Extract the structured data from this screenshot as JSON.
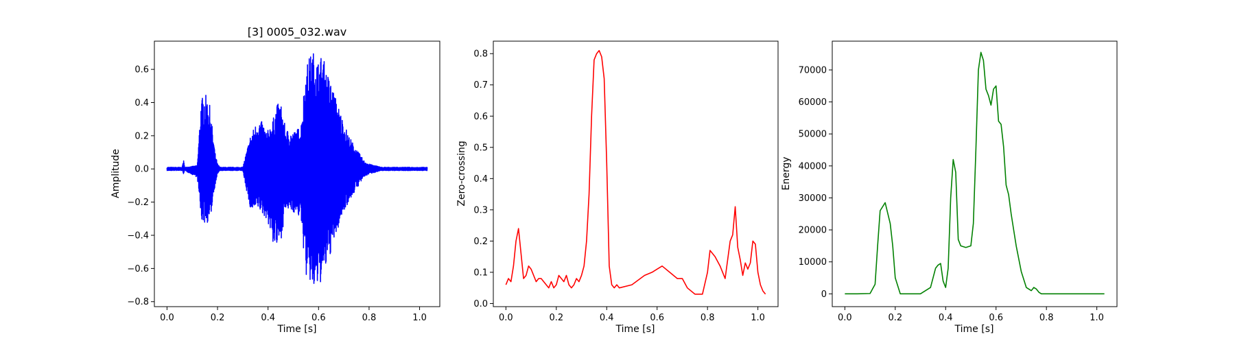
{
  "chart_data": [
    {
      "type": "line",
      "title": "[3] 0005_032.wav",
      "xlabel": "Time [s]",
      "ylabel": "Amplitude",
      "xlim": [
        -0.05,
        1.08
      ],
      "ylim": [
        -0.83,
        0.77
      ],
      "xticks": [
        0.0,
        0.2,
        0.4,
        0.6,
        0.8,
        1.0
      ],
      "xtick_labels": [
        "0.0",
        "0.2",
        "0.4",
        "0.6",
        "0.8",
        "1.0"
      ],
      "yticks": [
        -0.8,
        -0.6,
        -0.4,
        -0.2,
        0.0,
        0.2,
        0.4,
        0.6
      ],
      "ytick_labels": [
        "−0.8",
        "−0.6",
        "−0.4",
        "−0.2",
        "0.0",
        "0.2",
        "0.4",
        "0.6"
      ],
      "grid": false,
      "color": "#0000ff",
      "series": [
        {
          "style": "waveform",
          "envelope": {
            "x": [
              0.0,
              0.06,
              0.065,
              0.07,
              0.12,
              0.135,
              0.15,
              0.17,
              0.19,
              0.2,
              0.21,
              0.3,
              0.33,
              0.345,
              0.36,
              0.38,
              0.395,
              0.42,
              0.435,
              0.45,
              0.47,
              0.5,
              0.53,
              0.55,
              0.57,
              0.585,
              0.6,
              0.615,
              0.63,
              0.65,
              0.67,
              0.7,
              0.72,
              0.75,
              0.78,
              0.8,
              0.85,
              0.9,
              1.03
            ],
            "upper": [
              0.01,
              0.01,
              0.06,
              0.01,
              0.02,
              0.42,
              0.46,
              0.38,
              0.1,
              0.03,
              0.01,
              0.01,
              0.2,
              0.25,
              0.3,
              0.28,
              0.22,
              0.3,
              0.39,
              0.4,
              0.24,
              0.22,
              0.26,
              0.62,
              0.7,
              0.71,
              0.65,
              0.7,
              0.6,
              0.52,
              0.42,
              0.28,
              0.2,
              0.12,
              0.05,
              0.03,
              0.01,
              0.01,
              0.01
            ],
            "lower": [
              -0.01,
              -0.01,
              -0.03,
              -0.01,
              -0.05,
              -0.31,
              -0.33,
              -0.32,
              -0.1,
              -0.03,
              -0.01,
              -0.01,
              -0.25,
              -0.26,
              -0.24,
              -0.28,
              -0.3,
              -0.45,
              -0.48,
              -0.44,
              -0.25,
              -0.26,
              -0.3,
              -0.65,
              -0.7,
              -0.76,
              -0.7,
              -0.68,
              -0.6,
              -0.5,
              -0.4,
              -0.25,
              -0.2,
              -0.12,
              -0.05,
              -0.03,
              -0.01,
              -0.01,
              -0.01
            ]
          }
        }
      ]
    },
    {
      "type": "line",
      "xlabel": "Time [s]",
      "ylabel": "Zero-crossing",
      "xlim": [
        -0.05,
        1.08
      ],
      "ylim": [
        -0.01,
        0.84
      ],
      "xticks": [
        0.0,
        0.2,
        0.4,
        0.6,
        0.8,
        1.0
      ],
      "xtick_labels": [
        "0.0",
        "0.2",
        "0.4",
        "0.6",
        "0.8",
        "1.0"
      ],
      "yticks": [
        0.0,
        0.1,
        0.2,
        0.3,
        0.4,
        0.5,
        0.6,
        0.7,
        0.8
      ],
      "ytick_labels": [
        "0.0",
        "0.1",
        "0.2",
        "0.3",
        "0.4",
        "0.5",
        "0.6",
        "0.7",
        "0.8"
      ],
      "grid": false,
      "color": "#ff0000",
      "series": [
        {
          "x": [
            0.0,
            0.01,
            0.02,
            0.03,
            0.04,
            0.05,
            0.06,
            0.07,
            0.08,
            0.09,
            0.1,
            0.11,
            0.12,
            0.13,
            0.14,
            0.15,
            0.16,
            0.17,
            0.18,
            0.19,
            0.2,
            0.21,
            0.22,
            0.23,
            0.24,
            0.25,
            0.26,
            0.27,
            0.28,
            0.29,
            0.3,
            0.31,
            0.32,
            0.33,
            0.34,
            0.35,
            0.36,
            0.37,
            0.38,
            0.39,
            0.4,
            0.41,
            0.42,
            0.43,
            0.44,
            0.45,
            0.5,
            0.55,
            0.58,
            0.6,
            0.62,
            0.65,
            0.68,
            0.7,
            0.72,
            0.75,
            0.78,
            0.8,
            0.81,
            0.83,
            0.85,
            0.87,
            0.88,
            0.89,
            0.9,
            0.91,
            0.92,
            0.93,
            0.94,
            0.95,
            0.96,
            0.97,
            0.98,
            0.99,
            1.0,
            1.01,
            1.02,
            1.03
          ],
          "y": [
            0.06,
            0.08,
            0.07,
            0.12,
            0.2,
            0.24,
            0.16,
            0.08,
            0.09,
            0.12,
            0.11,
            0.09,
            0.07,
            0.08,
            0.08,
            0.07,
            0.06,
            0.05,
            0.07,
            0.05,
            0.06,
            0.09,
            0.08,
            0.07,
            0.09,
            0.06,
            0.05,
            0.06,
            0.08,
            0.07,
            0.09,
            0.12,
            0.2,
            0.35,
            0.6,
            0.78,
            0.8,
            0.81,
            0.79,
            0.72,
            0.45,
            0.12,
            0.06,
            0.05,
            0.06,
            0.05,
            0.06,
            0.09,
            0.1,
            0.11,
            0.12,
            0.1,
            0.08,
            0.08,
            0.05,
            0.03,
            0.03,
            0.1,
            0.17,
            0.15,
            0.12,
            0.08,
            0.14,
            0.2,
            0.22,
            0.31,
            0.18,
            0.14,
            0.09,
            0.13,
            0.11,
            0.13,
            0.2,
            0.19,
            0.1,
            0.06,
            0.04,
            0.03
          ]
        }
      ]
    },
    {
      "type": "line",
      "xlabel": "Time [s]",
      "ylabel": "Energy",
      "xlim": [
        -0.05,
        1.08
      ],
      "ylim": [
        -4000,
        79000
      ],
      "xticks": [
        0.0,
        0.2,
        0.4,
        0.6,
        0.8,
        1.0
      ],
      "xtick_labels": [
        "0.0",
        "0.2",
        "0.4",
        "0.6",
        "0.8",
        "1.0"
      ],
      "yticks": [
        0,
        10000,
        20000,
        30000,
        40000,
        50000,
        60000,
        70000
      ],
      "ytick_labels": [
        "0",
        "10000",
        "20000",
        "30000",
        "40000",
        "50000",
        "60000",
        "70000"
      ],
      "grid": false,
      "color": "#008000",
      "series": [
        {
          "x": [
            0.0,
            0.05,
            0.1,
            0.12,
            0.13,
            0.14,
            0.16,
            0.18,
            0.19,
            0.2,
            0.22,
            0.25,
            0.3,
            0.34,
            0.36,
            0.37,
            0.38,
            0.39,
            0.4,
            0.41,
            0.42,
            0.43,
            0.44,
            0.45,
            0.46,
            0.48,
            0.5,
            0.51,
            0.52,
            0.53,
            0.54,
            0.55,
            0.56,
            0.57,
            0.58,
            0.59,
            0.6,
            0.61,
            0.62,
            0.63,
            0.64,
            0.65,
            0.66,
            0.67,
            0.68,
            0.7,
            0.72,
            0.74,
            0.75,
            0.76,
            0.77,
            0.78,
            0.8,
            0.85,
            0.9,
            1.0,
            1.03
          ],
          "y": [
            0,
            0,
            100,
            3000,
            15000,
            26000,
            28500,
            22000,
            15000,
            5000,
            0,
            0,
            0,
            2000,
            8000,
            9000,
            9500,
            4000,
            2000,
            8000,
            30000,
            42000,
            38000,
            17000,
            15000,
            14500,
            15000,
            22000,
            45000,
            70000,
            75500,
            73000,
            64000,
            62000,
            59000,
            64000,
            65000,
            54000,
            53000,
            46000,
            34000,
            31000,
            25000,
            20000,
            15000,
            7000,
            2000,
            1000,
            2000,
            1500,
            500,
            0,
            0,
            0,
            0,
            0,
            0
          ]
        }
      ]
    }
  ]
}
